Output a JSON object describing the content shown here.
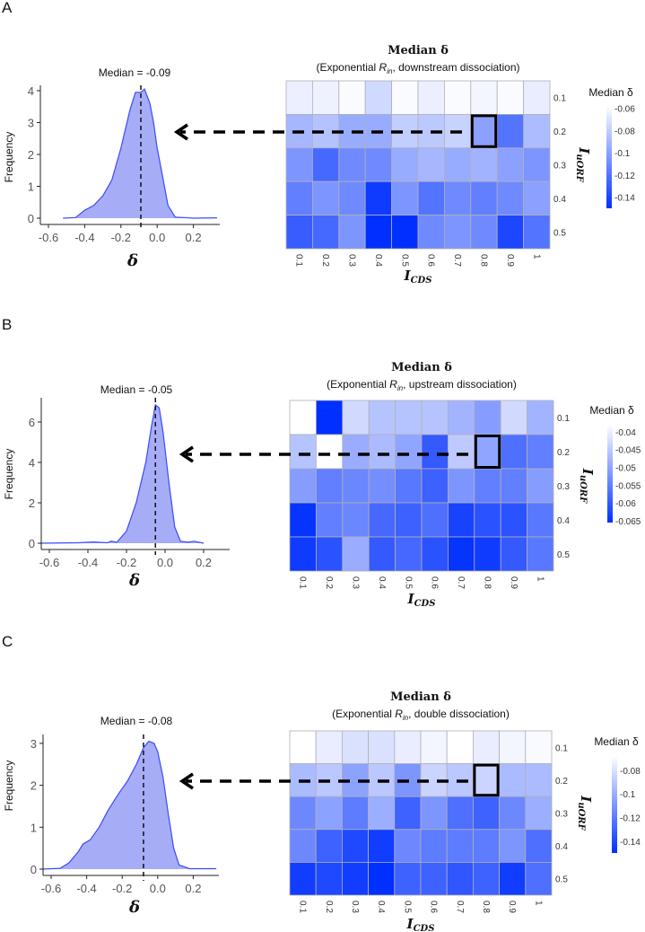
{
  "panel_labels": [
    "A",
    "B",
    "C"
  ],
  "chart_data": [
    {
      "panel": "A",
      "type": "area",
      "annotation": "Median = -0.09",
      "median": -0.09,
      "xlabel": "δ",
      "ylabel": "Frequency",
      "xlim": [
        -0.65,
        0.35
      ],
      "ylim": [
        0,
        4.2
      ],
      "xticks": [
        "-0.6",
        "-0.4",
        "-0.2",
        "0.0",
        "0.2"
      ],
      "yticks": [
        "0",
        "1",
        "2",
        "3",
        "4"
      ],
      "fill_color": "#a7acf7",
      "line_color": "#3a4cf5",
      "x": [
        -0.52,
        -0.45,
        -0.4,
        -0.35,
        -0.3,
        -0.25,
        -0.2,
        -0.15,
        -0.12,
        -0.09,
        -0.07,
        -0.04,
        -0.02,
        0,
        0.03,
        0.06,
        0.1,
        0.15,
        0.2,
        0.33
      ],
      "y": [
        0,
        0.02,
        0.25,
        0.4,
        0.7,
        1.2,
        2.2,
        3.4,
        3.95,
        3.95,
        4.05,
        3.6,
        3.0,
        2.2,
        1.3,
        0.4,
        0.03,
        0.02,
        0,
        0.01
      ]
    },
    {
      "panel": "A",
      "type": "heatmap",
      "title": "Median δ",
      "subtitle": {
        "prefix": "(Exponential ",
        "var": "R",
        "sub": "in",
        "suffix": ", downstream dissociation)"
      },
      "xlabel": {
        "main": "I",
        "sub": "CDS"
      },
      "ylabel": {
        "main": "I",
        "sub": "uORF"
      },
      "x_categories": [
        "0.1",
        "0.2",
        "0.3",
        "0.4",
        "0.5",
        "0.6",
        "0.7",
        "0.8",
        "0.9",
        "1"
      ],
      "y_categories": [
        "0.1",
        "0.2",
        "0.3",
        "0.4",
        "0.5"
      ],
      "values": [
        [
          -0.065,
          -0.064,
          -0.06,
          -0.075,
          -0.06,
          -0.065,
          -0.06,
          -0.062,
          -0.06,
          -0.066
        ],
        [
          -0.09,
          -0.085,
          -0.095,
          -0.095,
          -0.08,
          -0.082,
          -0.078,
          -0.1,
          -0.12,
          -0.088
        ],
        [
          -0.105,
          -0.125,
          -0.11,
          -0.11,
          -0.095,
          -0.09,
          -0.095,
          -0.092,
          -0.1,
          -0.105
        ],
        [
          -0.115,
          -0.105,
          -0.11,
          -0.145,
          -0.105,
          -0.12,
          -0.11,
          -0.115,
          -0.11,
          -0.1
        ],
        [
          -0.13,
          -0.125,
          -0.105,
          -0.15,
          -0.15,
          -0.11,
          -0.105,
          -0.11,
          -0.14,
          -0.12
        ]
      ],
      "highlight": {
        "x": "0.8",
        "y": "0.2"
      },
      "legend_title": "Median δ",
      "color_domain": [
        -0.15,
        -0.058
      ],
      "legend_ticks": [
        -0.06,
        -0.08,
        -0.1,
        -0.12,
        -0.14
      ],
      "legend_tick_labels": [
        "-0.06",
        "-0.08",
        "-0.1",
        "-0.12",
        "-0.14"
      ],
      "color_low": "#0030ff",
      "color_high": "#ffffff"
    },
    {
      "panel": "B",
      "type": "area",
      "annotation": "Median = -0.05",
      "median": -0.05,
      "xlabel": "δ",
      "ylabel": "Frequency",
      "xlim": [
        -0.65,
        0.35
      ],
      "ylim": [
        0,
        7.2
      ],
      "xticks": [
        "-0.6",
        "-0.4",
        "-0.2",
        "0.0",
        "0.2"
      ],
      "yticks": [
        "0",
        "2",
        "4",
        "6"
      ],
      "fill_color": "#a7acf7",
      "line_color": "#3a4cf5",
      "x": [
        -0.65,
        -0.45,
        -0.37,
        -0.3,
        -0.28,
        -0.25,
        -0.2,
        -0.15,
        -0.1,
        -0.07,
        -0.05,
        -0.03,
        -0.01,
        0.02,
        0.05,
        0.08,
        0.12,
        0.15,
        0.2
      ],
      "y": [
        0,
        0.02,
        0.06,
        0.02,
        0.1,
        0.05,
        0.6,
        2.0,
        4.0,
        5.8,
        6.85,
        6.7,
        5.5,
        3.0,
        0.8,
        0.1,
        0.05,
        0.1,
        0
      ]
    },
    {
      "panel": "B",
      "type": "heatmap",
      "title": "Median δ",
      "subtitle": {
        "prefix": "(Exponential ",
        "var": "R",
        "sub": "in",
        "suffix": ", upstream dissociation)"
      },
      "xlabel": {
        "main": "I",
        "sub": "CDS"
      },
      "ylabel": {
        "main": "I",
        "sub": "uORF"
      },
      "x_categories": [
        "0.1",
        "0.2",
        "0.3",
        "0.4",
        "0.5",
        "0.6",
        "0.7",
        "0.8",
        "0.9",
        "1"
      ],
      "y_categories": [
        "0.1",
        "0.2",
        "0.3",
        "0.4",
        "0.5"
      ],
      "values": [
        [
          -0.037,
          -0.066,
          -0.043,
          -0.046,
          -0.046,
          -0.046,
          -0.048,
          -0.051,
          -0.043,
          -0.048
        ],
        [
          -0.046,
          -0.038,
          -0.049,
          -0.047,
          -0.05,
          -0.06,
          -0.045,
          -0.05,
          -0.057,
          -0.055
        ],
        [
          -0.051,
          -0.055,
          -0.054,
          -0.053,
          -0.056,
          -0.059,
          -0.052,
          -0.055,
          -0.055,
          -0.051
        ],
        [
          -0.065,
          -0.055,
          -0.054,
          -0.058,
          -0.059,
          -0.057,
          -0.063,
          -0.061,
          -0.061,
          -0.056
        ],
        [
          -0.064,
          -0.061,
          -0.049,
          -0.06,
          -0.058,
          -0.061,
          -0.065,
          -0.064,
          -0.06,
          -0.056
        ]
      ],
      "highlight": {
        "x": "0.8",
        "y": "0.2"
      },
      "legend_title": "Median δ",
      "color_domain": [
        -0.0655,
        -0.038
      ],
      "legend_ticks": [
        -0.04,
        -0.045,
        -0.05,
        -0.055,
        -0.06,
        -0.065
      ],
      "legend_tick_labels": [
        "-0.04",
        "-0.045",
        "-0.05",
        "-0.055",
        "-0.06",
        "-0.065"
      ],
      "color_low": "#0030ff",
      "color_high": "#ffffff"
    },
    {
      "panel": "C",
      "type": "area",
      "annotation": "Median = -0.08",
      "median": -0.08,
      "xlabel": "δ",
      "ylabel": "Frequency",
      "xlim": [
        -0.65,
        0.35
      ],
      "ylim": [
        0,
        3.2
      ],
      "xticks": [
        "-0.6",
        "-0.4",
        "-0.2",
        "0.0",
        "0.2"
      ],
      "yticks": [
        "0",
        "1",
        "2",
        "3"
      ],
      "fill_color": "#a7acf7",
      "line_color": "#3a4cf5",
      "x": [
        -0.65,
        -0.55,
        -0.5,
        -0.45,
        -0.42,
        -0.38,
        -0.33,
        -0.28,
        -0.22,
        -0.17,
        -0.12,
        -0.08,
        -0.05,
        -0.02,
        0,
        0.03,
        0.06,
        0.09,
        0.12,
        0.18,
        0.33
      ],
      "y": [
        0,
        0.02,
        0.15,
        0.4,
        0.6,
        0.7,
        1.0,
        1.4,
        1.8,
        2.1,
        2.5,
        2.9,
        3.05,
        3.0,
        2.8,
        2.2,
        1.3,
        0.5,
        0.1,
        0.01,
        0.01
      ]
    },
    {
      "panel": "C",
      "type": "heatmap",
      "title": "Median δ",
      "subtitle": {
        "prefix": "(Exponential ",
        "var": "R",
        "sub": "in",
        "suffix": ", double dissociation)"
      },
      "xlabel": {
        "main": "I",
        "sub": "CDS"
      },
      "ylabel": {
        "main": "I",
        "sub": "uORF"
      },
      "x_categories": [
        "0.1",
        "0.2",
        "0.3",
        "0.4",
        "0.5",
        "0.6",
        "0.7",
        "0.8",
        "0.9",
        "1"
      ],
      "y_categories": [
        "0.1",
        "0.2",
        "0.3",
        "0.4",
        "0.5"
      ],
      "values": [
        [
          -0.065,
          -0.075,
          -0.08,
          -0.08,
          -0.075,
          -0.072,
          -0.065,
          -0.075,
          -0.072,
          -0.07
        ],
        [
          -0.095,
          -0.09,
          -0.105,
          -0.09,
          -0.11,
          -0.085,
          -0.09,
          -0.085,
          -0.095,
          -0.095
        ],
        [
          -0.115,
          -0.105,
          -0.12,
          -0.1,
          -0.13,
          -0.11,
          -0.125,
          -0.13,
          -0.115,
          -0.1
        ],
        [
          -0.115,
          -0.13,
          -0.14,
          -0.145,
          -0.115,
          -0.12,
          -0.12,
          -0.12,
          -0.11,
          -0.125
        ],
        [
          -0.145,
          -0.14,
          -0.145,
          -0.15,
          -0.13,
          -0.13,
          -0.135,
          -0.13,
          -0.145,
          -0.125
        ]
      ],
      "highlight": {
        "x": "0.8",
        "y": "0.2"
      },
      "legend_title": "Median δ",
      "color_domain": [
        -0.15,
        -0.068
      ],
      "legend_ticks": [
        -0.08,
        -0.1,
        -0.12,
        -0.14
      ],
      "legend_tick_labels": [
        "-0.08",
        "-0.1",
        "-0.12",
        "-0.14"
      ],
      "color_low": "#0030ff",
      "color_high": "#ffffff"
    }
  ]
}
